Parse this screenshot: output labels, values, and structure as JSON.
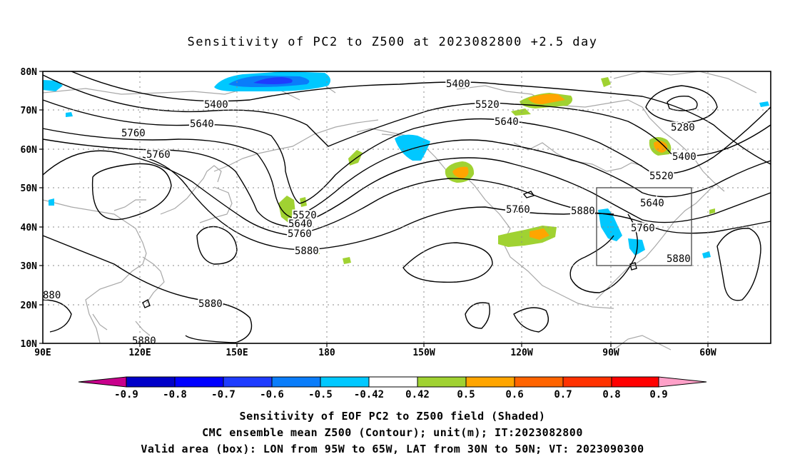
{
  "title": "Sensitivity of PC2 to Z500 at 2023082800 +2.5 day",
  "map": {
    "lat_labels": [
      "80N",
      "70N",
      "60N",
      "50N",
      "40N",
      "30N",
      "20N",
      "10N"
    ],
    "lon_labels": [
      "90E",
      "120E",
      "150E",
      "180",
      "150W",
      "120W",
      "90W",
      "60W"
    ],
    "contour_labels": [
      "5400",
      "5400",
      "5520",
      "5640",
      "5640",
      "5760",
      "5760",
      "5280",
      "5400",
      "5520",
      "5640",
      "5760",
      "5880",
      "5520",
      "5640",
      "5760",
      "5880",
      "5760",
      "5880",
      "5880",
      "5880",
      "880"
    ],
    "box": {
      "lon_from": "95W",
      "lon_to": "65W",
      "lat_from": "30N",
      "lat_to": "50N"
    }
  },
  "colorbar": {
    "labels": [
      "-0.9",
      "-0.8",
      "-0.7",
      "-0.6",
      "-0.5",
      "-0.42",
      "0.42",
      "0.5",
      "0.6",
      "0.7",
      "0.8",
      "0.9"
    ],
    "colors": [
      "#0000c8",
      "#0000ff",
      "#1e3cff",
      "#0a7dfa",
      "#00c8ff",
      "#ffffff",
      "#a0d232",
      "#ffa500",
      "#ff6400",
      "#ff3200",
      "#ff0000"
    ],
    "low_end_color": "#c8008c",
    "high_end_color": "#ffa0c8"
  },
  "footer": {
    "line1": "Sensitivity of EOF PC2 to Z500 field (Shaded)",
    "line2": "CMC ensemble mean Z500 (Contour); unit(m); IT:2023082800",
    "line3": "Valid area (box): LON from 95W to 65W, LAT from 30N to 50N; VT: 2023090300"
  }
}
